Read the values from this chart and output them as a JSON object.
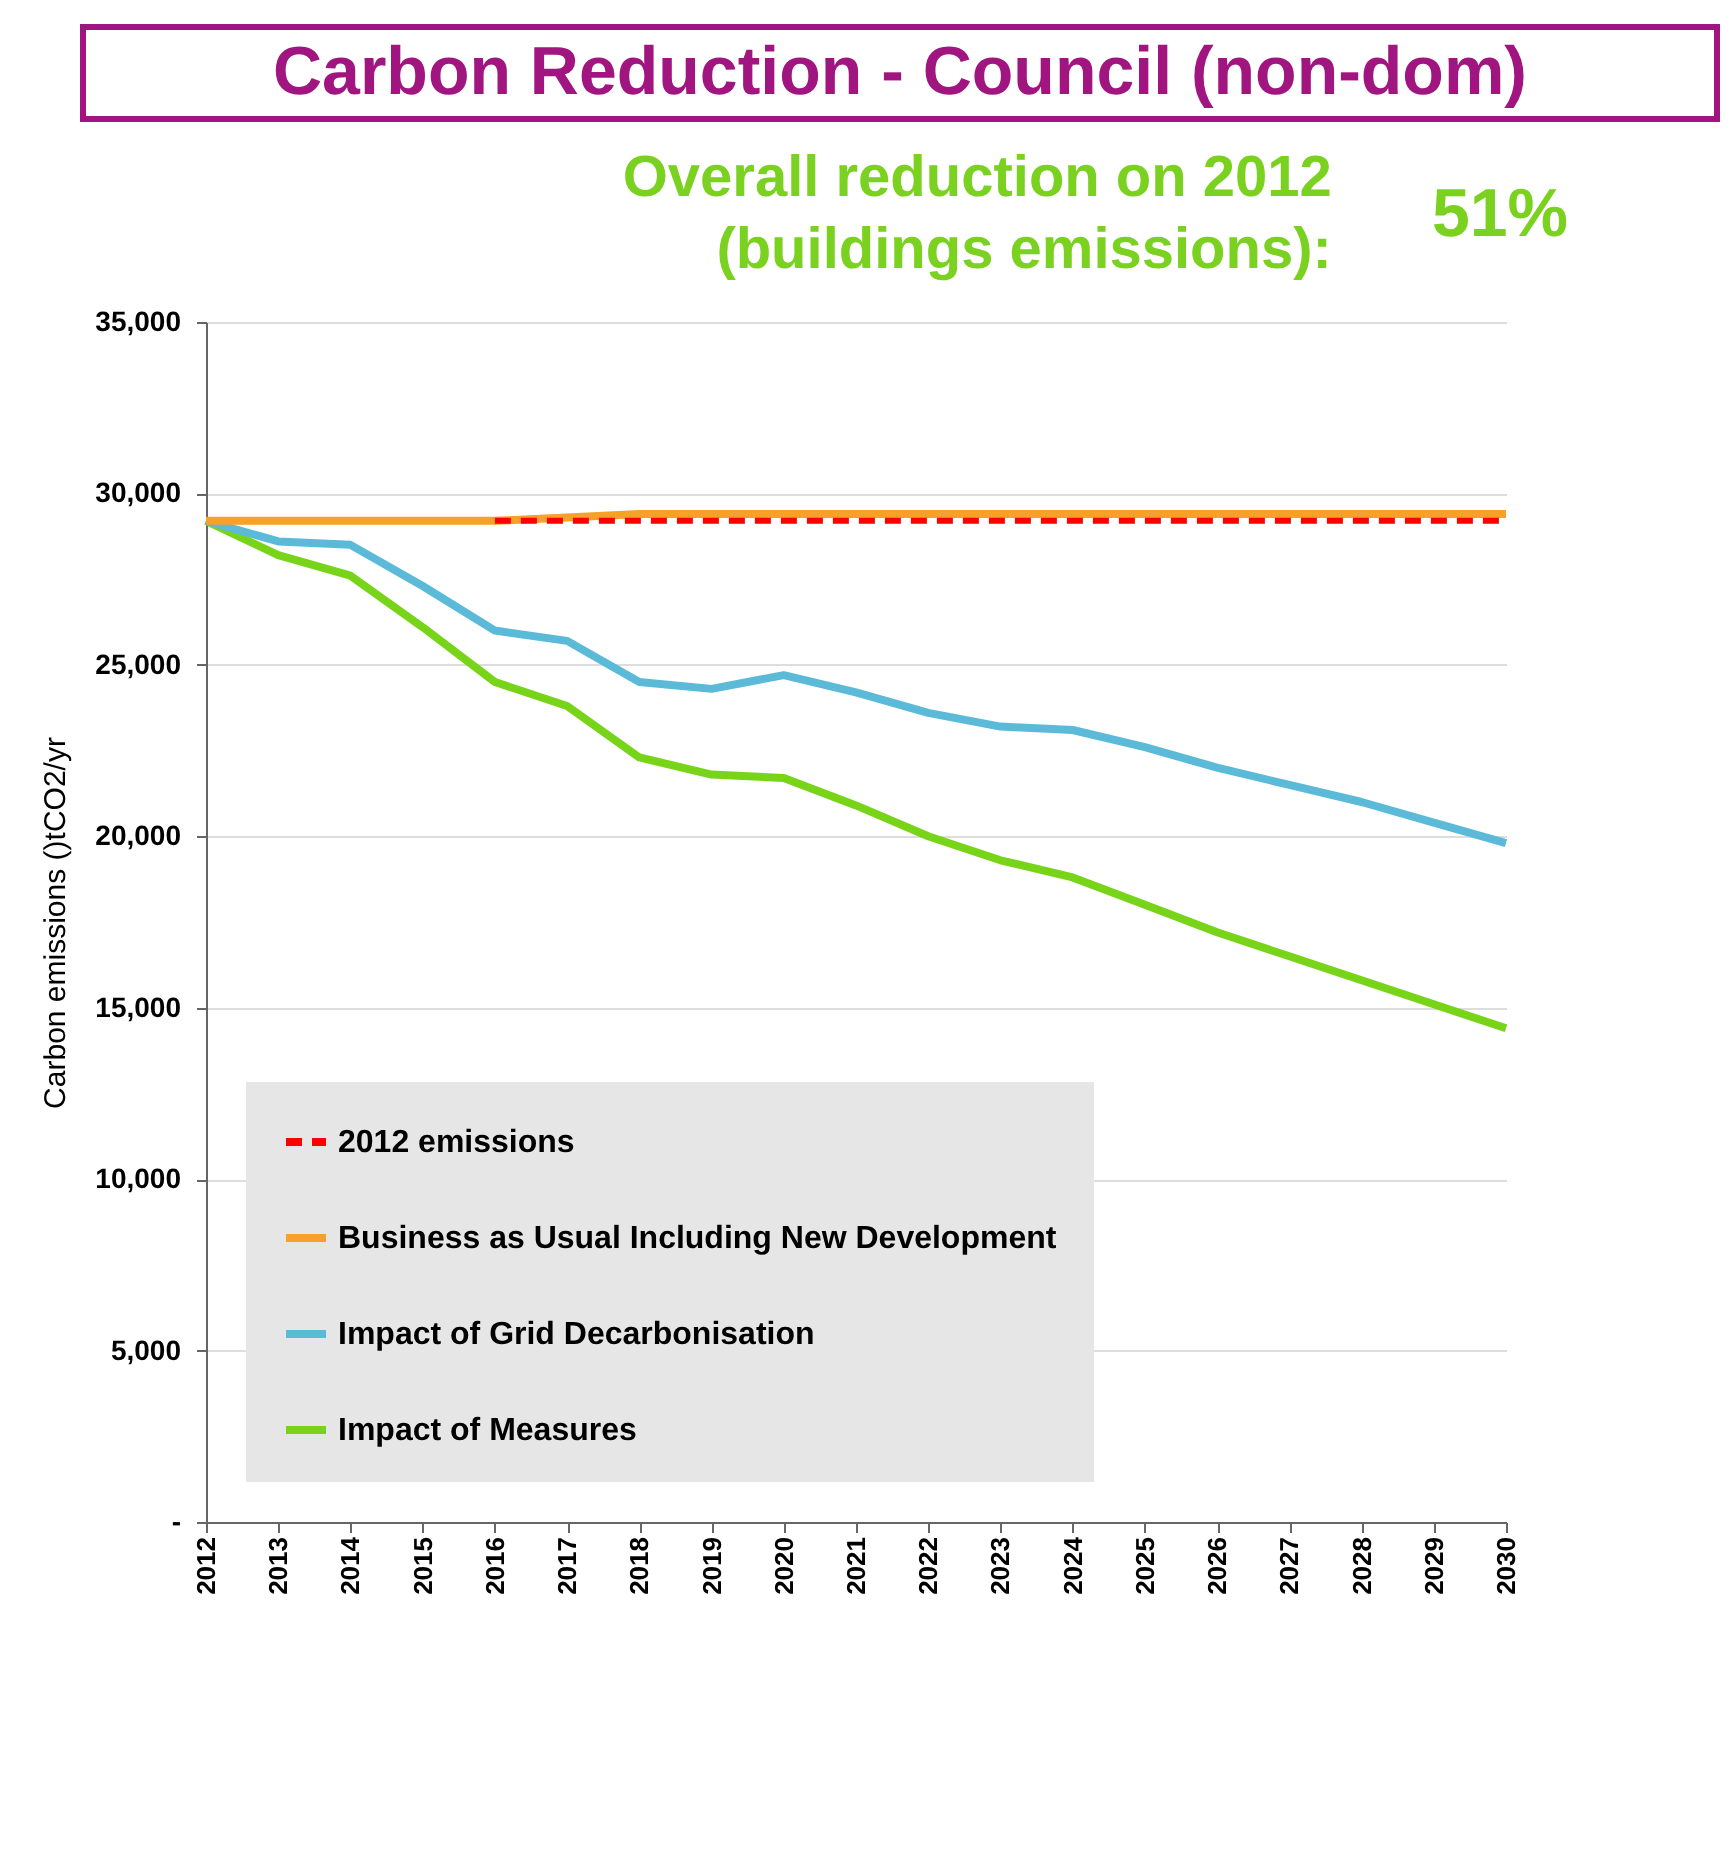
{
  "chart_data": {
    "type": "line",
    "title": "Carbon Reduction - Council (non-dom)",
    "subtitle": "Overall reduction on 2012 (buildings emissions):",
    "annotations": [
      "51%"
    ],
    "ylabel": "Carbon emissions ()tCO2/yr",
    "categories": [
      "2012",
      "2013",
      "2014",
      "2015",
      "2016",
      "2017",
      "2018",
      "2019",
      "2020",
      "2021",
      "2022",
      "2023",
      "2024",
      "2025",
      "2026",
      "2027",
      "2028",
      "2029",
      "2030"
    ],
    "series": [
      {
        "name": "2012 emissions",
        "color": "#ff0000",
        "line_style": "dashed",
        "values": [
          null,
          null,
          null,
          null,
          29200,
          29200,
          29200,
          29200,
          29200,
          29200,
          29200,
          29200,
          29200,
          29200,
          29200,
          29200,
          29200,
          29200,
          29200
        ]
      },
      {
        "name": "Business as Usual Including New Development",
        "color": "#f7a128",
        "line_style": "solid",
        "values": [
          29200,
          29200,
          29200,
          29200,
          29200,
          29300,
          29400,
          29400,
          29400,
          29400,
          29400,
          29400,
          29400,
          29400,
          29400,
          29400,
          29400,
          29400,
          29400
        ]
      },
      {
        "name": "Impact of Grid Decarbonisation",
        "color": "#5bbad8",
        "line_style": "solid",
        "values": [
          29200,
          28600,
          28500,
          27300,
          26000,
          25700,
          24500,
          24300,
          24700,
          24200,
          23600,
          23200,
          23100,
          22600,
          22000,
          21500,
          21000,
          20400,
          19800
        ]
      },
      {
        "name": "Impact of Measures",
        "color": "#78d419",
        "line_style": "solid",
        "values": [
          29200,
          28200,
          27600,
          26100,
          24500,
          23800,
          22300,
          21800,
          21700,
          20900,
          20000,
          19300,
          18800,
          18000,
          17200,
          16500,
          15800,
          15100,
          14400
        ]
      }
    ],
    "ylim": [
      0,
      35000
    ],
    "yticks": [
      {
        "value": 0,
        "label": "-"
      },
      {
        "value": 5000,
        "label": "5,000"
      },
      {
        "value": 10000,
        "label": "10,000"
      },
      {
        "value": 15000,
        "label": "15,000"
      },
      {
        "value": 20000,
        "label": "20,000"
      },
      {
        "value": 25000,
        "label": "25,000"
      },
      {
        "value": 30000,
        "label": "30,000"
      },
      {
        "value": 35000,
        "label": "35,000"
      }
    ],
    "grid": "y",
    "legend": "bottom left",
    "marker": "none"
  }
}
